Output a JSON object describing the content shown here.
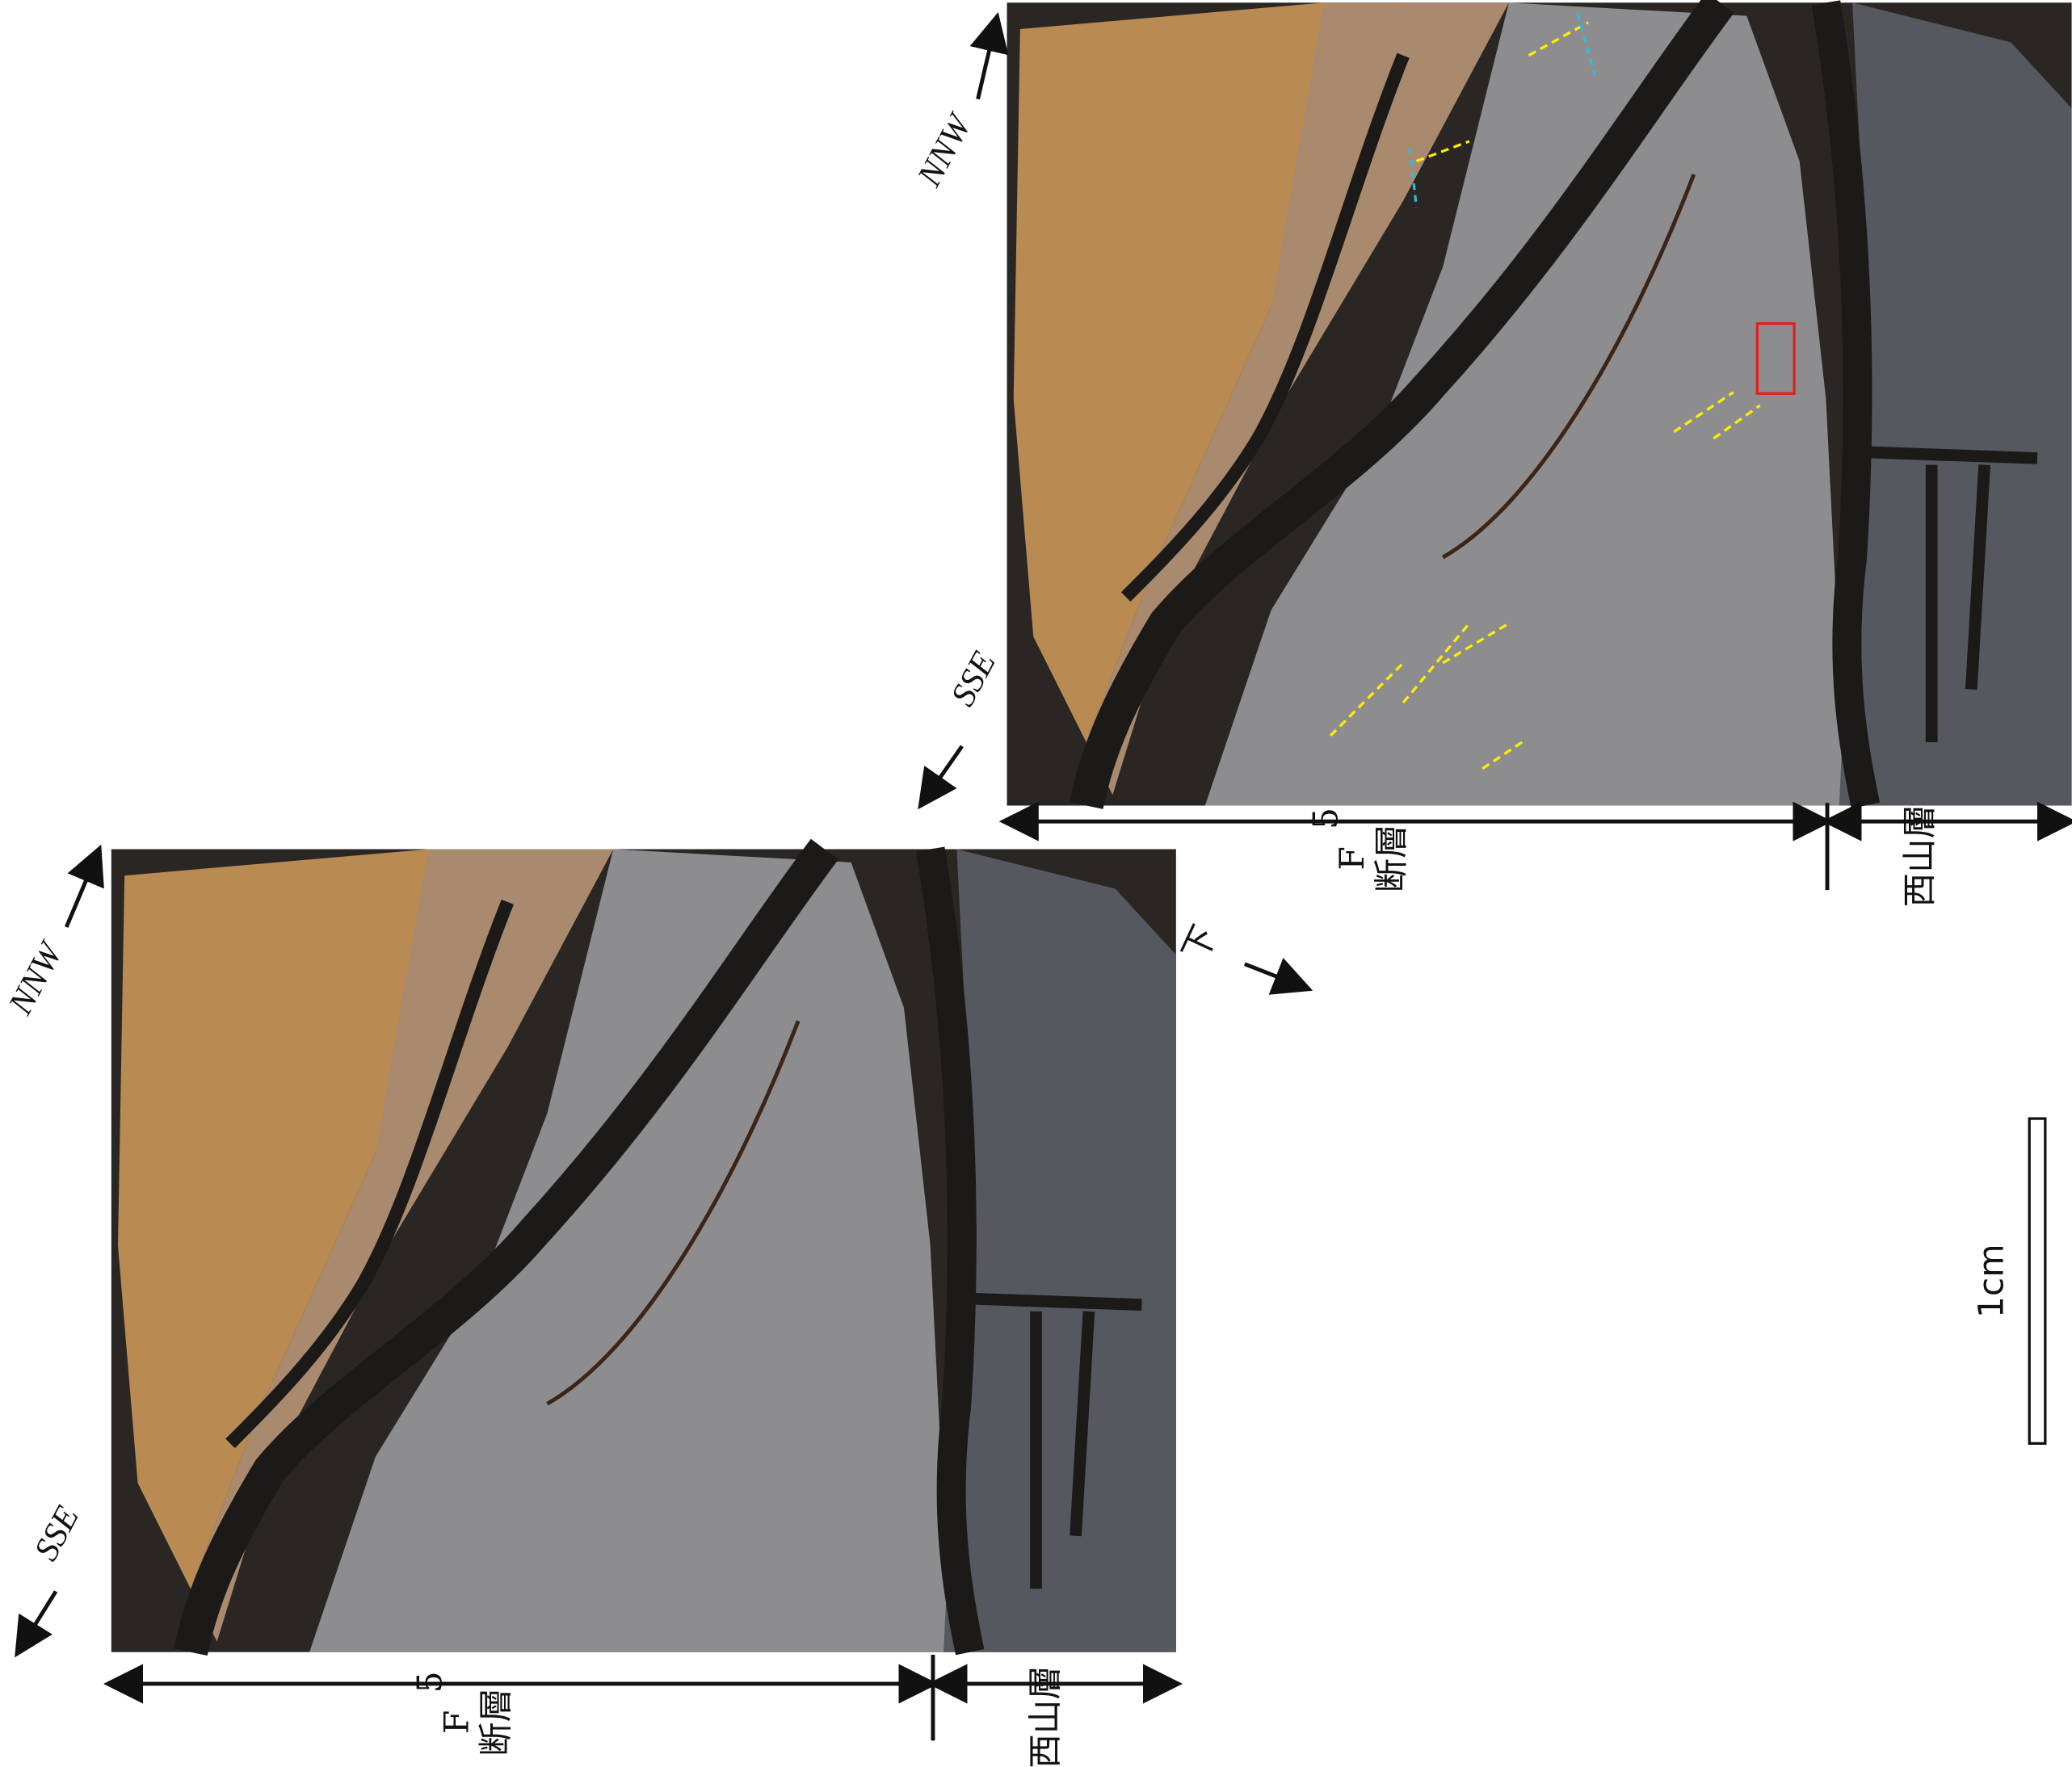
{
  "panels": [
    {
      "north": "NNW",
      "south": "SSE",
      "fault": "F",
      "fault_sub": "5",
      "fault_word": "断層",
      "formation": "西山層"
    },
    {
      "north": "NNW",
      "south": "SSE",
      "fault": "F",
      "fault_sub": "5",
      "fault_word": "断層",
      "formation": "西山層"
    }
  ],
  "down_label": "下",
  "scale_label": "1cm"
}
